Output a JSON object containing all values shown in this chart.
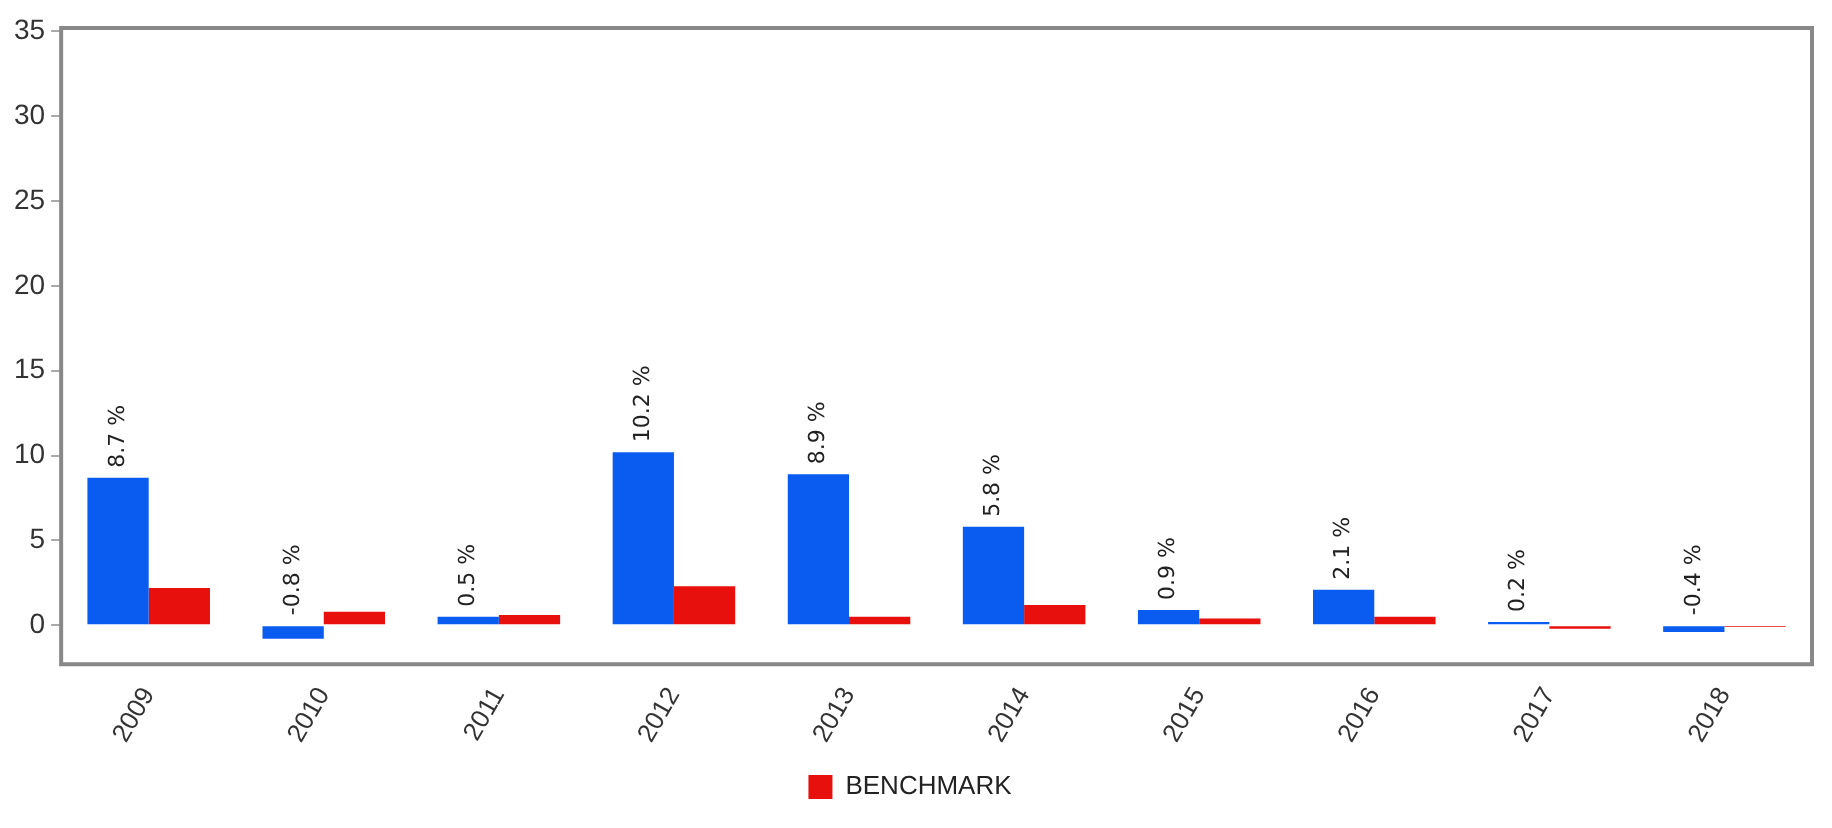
{
  "chart_data": {
    "type": "bar",
    "categories": [
      "2009",
      "2010",
      "2011",
      "2012",
      "2013",
      "2014",
      "2015",
      "2016",
      "2017",
      "2018"
    ],
    "series": [
      {
        "color": "#0a5cf0",
        "values": [
          8.7,
          -0.8,
          0.5,
          10.2,
          8.9,
          5.8,
          0.9,
          2.1,
          0.2,
          -0.4
        ],
        "value_labels": [
          "8.7 %",
          "-0.8 %",
          "0.5 %",
          "10.2 %",
          "8.9 %",
          "5.8 %",
          "0.9 %",
          "2.1 %",
          "0.2 %",
          "-0.4 %"
        ]
      },
      {
        "name": "BENCHMARK",
        "color": "#e8100c",
        "values": [
          2.2,
          0.8,
          0.6,
          2.3,
          0.5,
          1.2,
          0.4,
          0.5,
          -0.2,
          -0.1
        ]
      }
    ],
    "ylim": [
      -2.3,
      35.2
    ],
    "yticks": [
      0,
      5,
      10,
      15,
      20,
      25,
      30,
      35
    ],
    "grid": false,
    "legend": "bottom"
  }
}
